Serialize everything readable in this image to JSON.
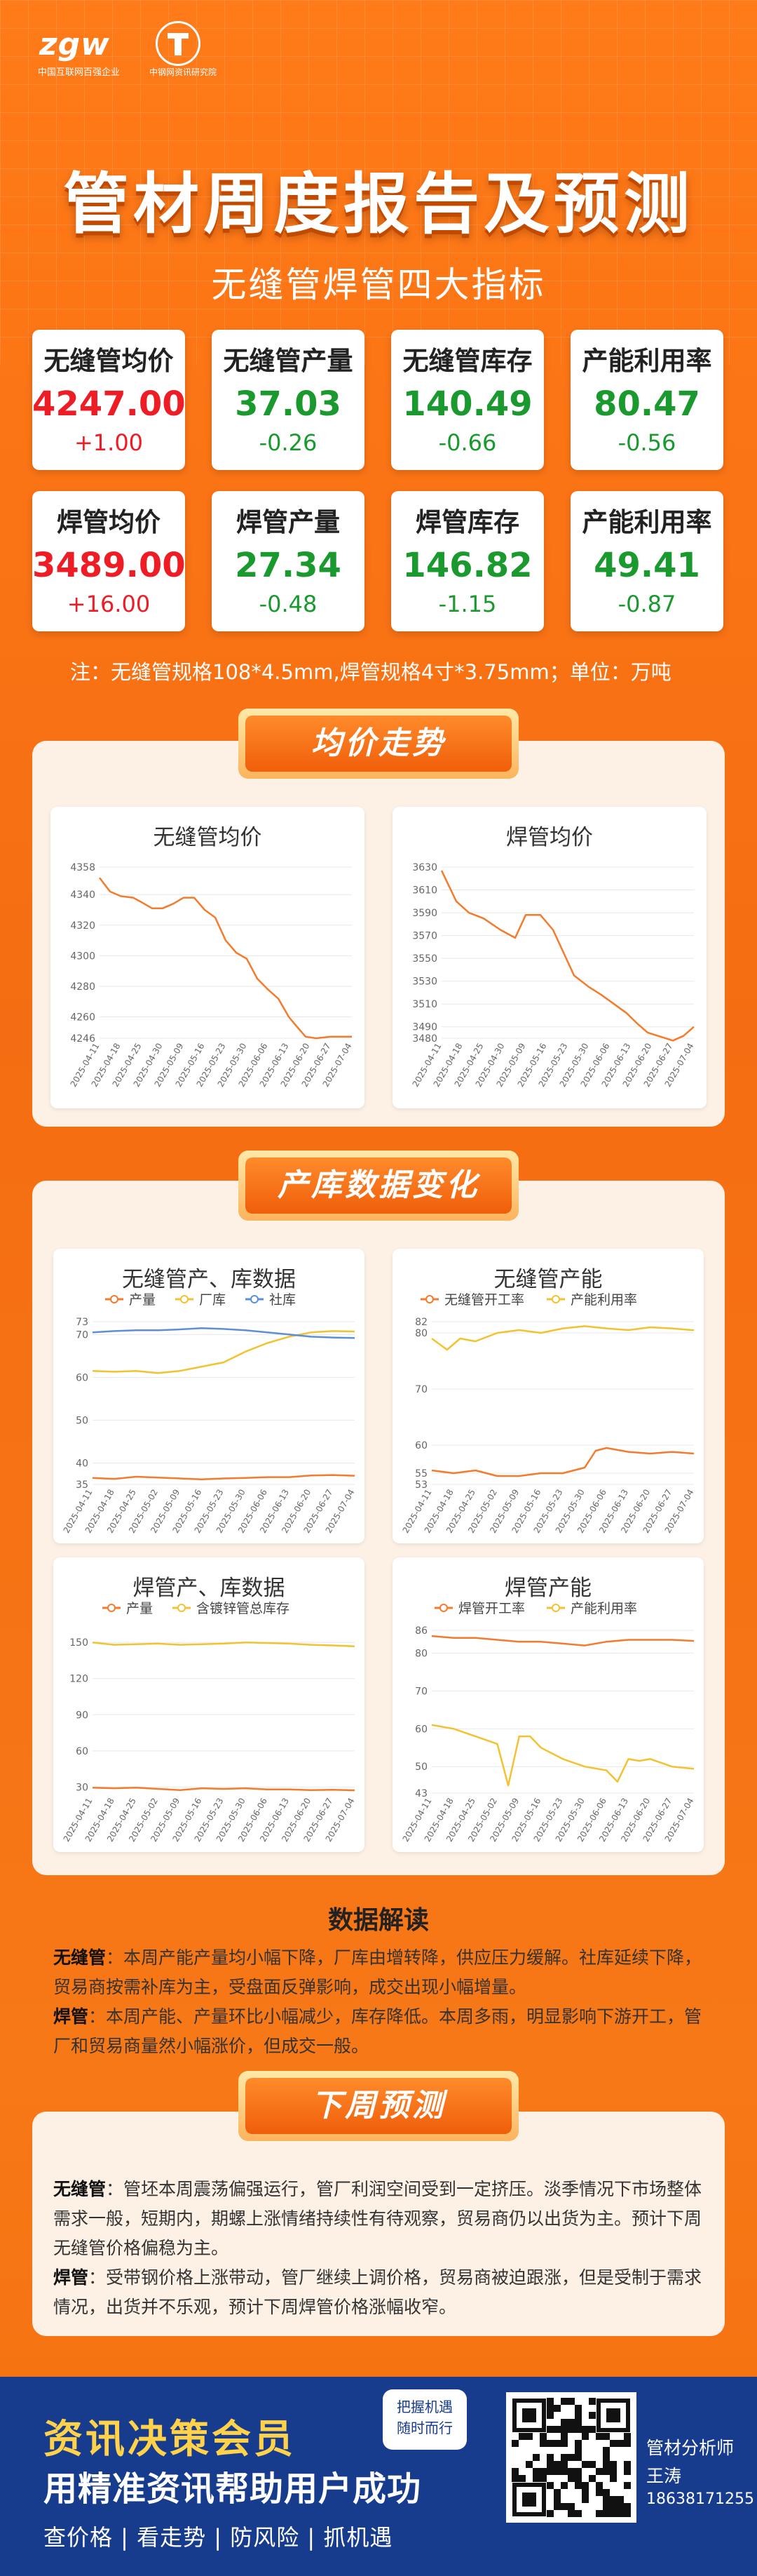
{
  "header": {
    "logo_text": "zgw",
    "logo_sub": "中国互联网百强企业",
    "logo2_sub": "中钢网资讯研究院",
    "title": "管材周度报告及预测",
    "subtitle": "无缝管焊管四大指标"
  },
  "cards": [
    {
      "label": "无缝管均价",
      "value": "4247.00",
      "change": "+1.00",
      "color": "red"
    },
    {
      "label": "无缝管产量",
      "value": "37.03",
      "change": "-0.26",
      "color": "green"
    },
    {
      "label": "无缝管库存",
      "value": "140.49",
      "change": "-0.66",
      "color": "green"
    },
    {
      "label": "产能利用率",
      "value": "80.47",
      "change": "-0.56",
      "color": "green"
    },
    {
      "label": "焊管均价",
      "value": "3489.00",
      "change": "+16.00",
      "color": "red"
    },
    {
      "label": "焊管产量",
      "value": "27.34",
      "change": "-0.48",
      "color": "green"
    },
    {
      "label": "焊管库存",
      "value": "146.82",
      "change": "-1.15",
      "color": "green"
    },
    {
      "label": "产能利用率",
      "value": "49.41",
      "change": "-0.87",
      "color": "green"
    }
  ],
  "note": "注：无缝管规格108*4.5mm,焊管规格4寸*3.75mm；单位：万吨",
  "sections": {
    "price": "均价走势",
    "prod": "产库数据变化",
    "interp": "数据解读",
    "forecast": "下周预测"
  },
  "colors": {
    "orange": "#f47b2c",
    "yellow": "#f2c230",
    "blue": "#5b8fd6"
  },
  "chart_data": [
    {
      "id": "c1",
      "type": "line",
      "title": "无缝管均价",
      "x": [
        "2025-04-11",
        "2025-04-18",
        "2025-04-25",
        "2025-04-30",
        "2025-05-09",
        "2025-05-16",
        "2025-05-23",
        "2025-05-30",
        "2025-06-06",
        "2025-06-13",
        "2025-06-20",
        "2025-06-27",
        "2025-07-04"
      ],
      "yticks": [
        4246,
        4260,
        4280,
        4300,
        4320,
        4340,
        4358
      ],
      "ylim": [
        4246,
        4358
      ],
      "series": [
        {
          "color": "#f47b2c",
          "points": [
            [
              0,
              4351
            ],
            [
              0.5,
              4342
            ],
            [
              1,
              4339
            ],
            [
              1.6,
              4338
            ],
            [
              2,
              4335
            ],
            [
              2.5,
              4331
            ],
            [
              3,
              4331
            ],
            [
              3.5,
              4334
            ],
            [
              4,
              4338
            ],
            [
              4.5,
              4338
            ],
            [
              5,
              4330
            ],
            [
              5.5,
              4325
            ],
            [
              6,
              4310
            ],
            [
              6.5,
              4302
            ],
            [
              7,
              4298
            ],
            [
              7.5,
              4285
            ],
            [
              8,
              4278
            ],
            [
              8.5,
              4272
            ],
            [
              9,
              4260
            ],
            [
              9.3,
              4255
            ],
            [
              9.8,
              4247
            ],
            [
              10.3,
              4246
            ],
            [
              11,
              4247
            ],
            [
              12,
              4247
            ]
          ]
        }
      ]
    },
    {
      "id": "c2",
      "type": "line",
      "title": "焊管均价",
      "x": [
        "2025-04-11",
        "2025-04-18",
        "2025-04-25",
        "2025-04-30",
        "2025-05-09",
        "2025-05-16",
        "2025-05-23",
        "2025-05-30",
        "2025-06-06",
        "2025-06-13",
        "2025-06-20",
        "2025-06-27",
        "2025-07-04"
      ],
      "yticks": [
        3480,
        3490,
        3510,
        3530,
        3550,
        3570,
        3590,
        3610,
        3630
      ],
      "ylim": [
        3480,
        3630
      ],
      "series": [
        {
          "color": "#f47b2c",
          "points": [
            [
              0,
              3627
            ],
            [
              0.7,
              3600
            ],
            [
              1.3,
              3590
            ],
            [
              2,
              3585
            ],
            [
              2.8,
              3575
            ],
            [
              3.5,
              3568
            ],
            [
              4,
              3588
            ],
            [
              4.7,
              3588
            ],
            [
              5.3,
              3575
            ],
            [
              5.8,
              3555
            ],
            [
              6.3,
              3535
            ],
            [
              7,
              3525
            ],
            [
              7.6,
              3518
            ],
            [
              8.2,
              3510
            ],
            [
              8.8,
              3502
            ],
            [
              9.3,
              3493
            ],
            [
              9.8,
              3485
            ],
            [
              10.3,
              3482
            ],
            [
              11,
              3478
            ],
            [
              11.5,
              3482
            ],
            [
              12,
              3490
            ]
          ]
        }
      ]
    },
    {
      "id": "c3",
      "type": "line",
      "title": "无缝管产、库数据",
      "x": [
        "2025-04-11",
        "2025-04-18",
        "2025-04-25",
        "2025-05-02",
        "2025-05-09",
        "2025-05-16",
        "2025-05-23",
        "2025-05-30",
        "2025-06-06",
        "2025-06-13",
        "2025-06-20",
        "2025-06-27",
        "2025-07-04"
      ],
      "yticks": [
        35,
        40,
        50,
        60,
        70,
        73
      ],
      "ylim": [
        35,
        73
      ],
      "series": [
        {
          "name": "产量",
          "color": "#f47b2c",
          "points": [
            [
              0,
              36.5
            ],
            [
              1,
              36.3
            ],
            [
              2,
              36.8
            ],
            [
              3,
              36.6
            ],
            [
              4,
              36.4
            ],
            [
              5,
              36.2
            ],
            [
              6,
              36.4
            ],
            [
              7,
              36.5
            ],
            [
              8,
              36.7
            ],
            [
              9,
              36.7
            ],
            [
              10,
              37.1
            ],
            [
              11,
              37.2
            ],
            [
              12,
              37.03
            ]
          ]
        },
        {
          "name": "厂库",
          "color": "#f2c230",
          "points": [
            [
              0,
              61.5
            ],
            [
              1,
              61.3
            ],
            [
              2,
              61.5
            ],
            [
              3,
              61
            ],
            [
              4,
              61.5
            ],
            [
              5,
              62.5
            ],
            [
              6,
              63.5
            ],
            [
              7,
              66
            ],
            [
              8,
              68
            ],
            [
              9,
              69.5
            ],
            [
              10,
              70.5
            ],
            [
              11,
              70.8
            ],
            [
              12,
              70.7
            ]
          ]
        },
        {
          "name": "社库",
          "color": "#5b8fd6",
          "points": [
            [
              0,
              70.5
            ],
            [
              1,
              70.8
            ],
            [
              2,
              71
            ],
            [
              3,
              71
            ],
            [
              4,
              71.2
            ],
            [
              5,
              71.5
            ],
            [
              6,
              71.3
            ],
            [
              7,
              71
            ],
            [
              8,
              70.5
            ],
            [
              9,
              70
            ],
            [
              10,
              69.5
            ],
            [
              11,
              69.3
            ],
            [
              12,
              69.2
            ]
          ]
        }
      ]
    },
    {
      "id": "c4",
      "type": "line",
      "title": "无缝管产能",
      "x": [
        "2025-04-11",
        "2025-04-18",
        "2025-04-25",
        "2025-05-02",
        "2025-05-09",
        "2025-05-16",
        "2025-05-23",
        "2025-05-30",
        "2025-06-06",
        "2025-06-13",
        "2025-06-20",
        "2025-06-27",
        "2025-07-04"
      ],
      "yticks": [
        53,
        55,
        60,
        70,
        80,
        82
      ],
      "ylim": [
        53,
        82
      ],
      "series": [
        {
          "name": "无缝管开工率",
          "color": "#f47b2c",
          "points": [
            [
              0,
              55.5
            ],
            [
              1,
              55
            ],
            [
              2,
              55.5
            ],
            [
              3,
              54.5
            ],
            [
              4,
              54.5
            ],
            [
              5,
              55
            ],
            [
              6,
              55
            ],
            [
              7,
              56
            ],
            [
              7.5,
              59
            ],
            [
              8,
              59.5
            ],
            [
              9,
              58.8
            ],
            [
              10,
              58.5
            ],
            [
              11,
              58.8
            ],
            [
              12,
              58.5
            ]
          ]
        },
        {
          "name": "产能利用率",
          "color": "#f2c230",
          "points": [
            [
              0,
              79
            ],
            [
              0.7,
              77
            ],
            [
              1.3,
              79
            ],
            [
              2,
              78.5
            ],
            [
              3,
              80
            ],
            [
              4,
              80.5
            ],
            [
              5,
              80
            ],
            [
              6,
              80.8
            ],
            [
              7,
              81.2
            ],
            [
              8,
              80.8
            ],
            [
              9,
              80.5
            ],
            [
              10,
              81
            ],
            [
              11,
              80.8
            ],
            [
              12,
              80.47
            ]
          ]
        }
      ]
    },
    {
      "id": "c5",
      "type": "line",
      "title": "焊管产、库数据",
      "x": [
        "2025-04-11",
        "2025-04-18",
        "2025-04-25",
        "2025-05-02",
        "2025-05-09",
        "2025-05-16",
        "2025-05-23",
        "2025-05-30",
        "2025-06-06",
        "2025-06-13",
        "2025-06-20",
        "2025-06-27",
        "2025-07-04"
      ],
      "yticks": [
        30,
        60,
        90,
        120,
        150
      ],
      "ylim": [
        25,
        160
      ],
      "series": [
        {
          "name": "产量",
          "color": "#f47b2c",
          "points": [
            [
              0,
              29.5
            ],
            [
              1,
              29
            ],
            [
              2,
              29.5
            ],
            [
              3,
              28.5
            ],
            [
              4,
              27.5
            ],
            [
              5,
              29
            ],
            [
              6,
              28.5
            ],
            [
              7,
              29
            ],
            [
              8,
              28
            ],
            [
              9,
              28
            ],
            [
              10,
              27.5
            ],
            [
              11,
              27.8
            ],
            [
              12,
              27.34
            ]
          ]
        },
        {
          "name": "含镀锌管总库存",
          "color": "#f2c230",
          "points": [
            [
              0,
              150
            ],
            [
              1,
              148
            ],
            [
              2,
              148.5
            ],
            [
              3,
              149
            ],
            [
              4,
              148
            ],
            [
              5,
              148.5
            ],
            [
              6,
              149
            ],
            [
              7,
              150
            ],
            [
              8,
              149.5
            ],
            [
              9,
              149
            ],
            [
              10,
              148
            ],
            [
              11,
              147.5
            ],
            [
              12,
              146.82
            ]
          ]
        }
      ]
    },
    {
      "id": "c6",
      "type": "line",
      "title": "焊管产能",
      "x": [
        "2025-04-11",
        "2025-04-18",
        "2025-04-25",
        "2025-05-02",
        "2025-05-09",
        "2025-05-16",
        "2025-05-23",
        "2025-05-30",
        "2025-06-06",
        "2025-06-13",
        "2025-06-20",
        "2025-06-27",
        "2025-07-04"
      ],
      "yticks": [
        43,
        50,
        60,
        70,
        80,
        86
      ],
      "ylim": [
        43,
        86
      ],
      "series": [
        {
          "name": "焊管开工率",
          "color": "#f47b2c",
          "points": [
            [
              0,
              84.5
            ],
            [
              1,
              84
            ],
            [
              2,
              84
            ],
            [
              3,
              83.5
            ],
            [
              4,
              83
            ],
            [
              5,
              83
            ],
            [
              6,
              82.5
            ],
            [
              7,
              82
            ],
            [
              8,
              83
            ],
            [
              9,
              83.5
            ],
            [
              10,
              83.5
            ],
            [
              11,
              83.5
            ],
            [
              12,
              83.2
            ]
          ]
        },
        {
          "name": "产能利用率",
          "color": "#f2c230",
          "points": [
            [
              0,
              61
            ],
            [
              1,
              60
            ],
            [
              2,
              58
            ],
            [
              3,
              56
            ],
            [
              3.5,
              45
            ],
            [
              4,
              58
            ],
            [
              4.5,
              58
            ],
            [
              5,
              55
            ],
            [
              6,
              52
            ],
            [
              7,
              50
            ],
            [
              8,
              49
            ],
            [
              8.5,
              46
            ],
            [
              9,
              52
            ],
            [
              9.5,
              51.5
            ],
            [
              10,
              52
            ],
            [
              11,
              50
            ],
            [
              12,
              49.41
            ]
          ]
        }
      ]
    }
  ],
  "interpretation": [
    {
      "label": "无缝管",
      "text": "：本周产能产量均小幅下降，厂库由增转降，供应压力缓解。社库延续下降，贸易商按需补库为主，受盘面反弹影响，成交出现小幅增量。"
    },
    {
      "label": "焊管",
      "text": "：本周产能、产量环比小幅减少，库存降低。本周多雨，明显影响下游开工，管厂和贸易商量然小幅涨价，但成交一般。"
    }
  ],
  "forecast": [
    {
      "label": "无缝管",
      "text": "：管坯本周震荡偏强运行，管厂利润空间受到一定挤压。淡季情况下市场整体需求一般，短期内，期螺上涨情绪持续性有待观察，贸易商仍以出货为主。预计下周无缝管价格偏稳为主。"
    },
    {
      "label": "焊管",
      "text": "：受带钢价格上涨带动，管厂继续上调价格，贸易商被迫跟涨，但是受制于需求情况，出货并不乐观，预计下周焊管价格涨幅收窄。"
    }
  ],
  "footer": {
    "line1": "资讯决策会员",
    "line2": "用精准资讯帮助用户成功",
    "line3": "查价格 | 看走势 | 防风险 | 抓机遇",
    "bubble1": "把握机遇",
    "bubble2": "随时而行",
    "role": "管材分析师",
    "name": "王涛",
    "phone": "18638171255"
  }
}
